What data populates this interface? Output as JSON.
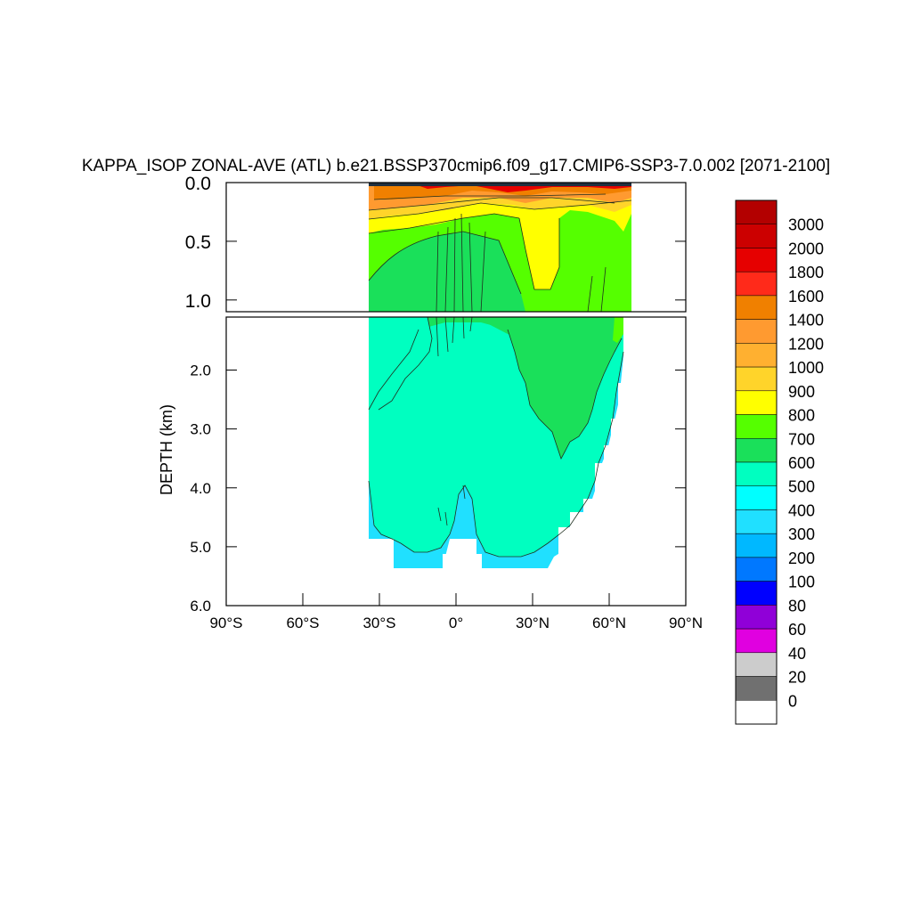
{
  "chart_data": {
    "type": "heatmap",
    "title": "KAPPA_ISOP ZONAL-AVE (ATL) b.e21.BSSP370cmip6.f09_g17.CMIP6-SSP3-7.0.002 [2071-2100]",
    "ylabel": "DEPTH (km)",
    "xlabel": "",
    "xlim": [
      -90,
      90
    ],
    "ylim_upper_panel": [
      0.0,
      1.1
    ],
    "ylim_lower_panel": [
      1.1,
      6.0
    ],
    "x_ticks": [
      {
        "value": -90,
        "label": "90°S"
      },
      {
        "value": -60,
        "label": "60°S"
      },
      {
        "value": -30,
        "label": "30°S"
      },
      {
        "value": 0,
        "label": "0°"
      },
      {
        "value": 30,
        "label": "30°N"
      },
      {
        "value": 60,
        "label": "60°N"
      },
      {
        "value": 90,
        "label": "90°N"
      }
    ],
    "y_ticks_upper": [
      {
        "value": 0.0,
        "label": "0.0"
      },
      {
        "value": 0.5,
        "label": "0.5"
      },
      {
        "value": 1.0,
        "label": "1.0"
      }
    ],
    "y_ticks_lower": [
      {
        "value": 2.0,
        "label": "2.0"
      },
      {
        "value": 3.0,
        "label": "3.0"
      },
      {
        "value": 4.0,
        "label": "4.0"
      },
      {
        "value": 5.0,
        "label": "5.0"
      },
      {
        "value": 6.0,
        "label": "6.0"
      }
    ],
    "colorbar": {
      "levels": [
        "3000",
        "2000",
        "1800",
        "1600",
        "1400",
        "1200",
        "1000",
        "900",
        "800",
        "700",
        "600",
        "500",
        "400",
        "300",
        "200",
        "100",
        "80",
        "60",
        "40",
        "20",
        "0"
      ],
      "colors": [
        "#b30000",
        "#cc0000",
        "#e60000",
        "#ff2a1a",
        "#f08000",
        "#ff9a30",
        "#ffb030",
        "#ffd42a",
        "#ffff00",
        "#55ff00",
        "#1ae05a",
        "#00ffc0",
        "#00ffff",
        "#20e0ff",
        "#00b8ff",
        "#0078ff",
        "#0000ff",
        "#9000d8",
        "#e000e0",
        "#cccccc",
        "#707070",
        "#ffffff"
      ]
    },
    "regions": [
      {
        "name": "deep-cyan",
        "value_range": "400-500"
      },
      {
        "name": "main-mint",
        "value_range": "500-600"
      },
      {
        "name": "green-intermediate",
        "value_range": "600-700"
      },
      {
        "name": "bright-green",
        "value_range": "700-800"
      },
      {
        "name": "yellow-upper",
        "value_range": "800-900"
      },
      {
        "name": "orange-surface",
        "value_range": "1000-1400"
      },
      {
        "name": "red-surface",
        "value_range": "1600-3000"
      }
    ]
  }
}
